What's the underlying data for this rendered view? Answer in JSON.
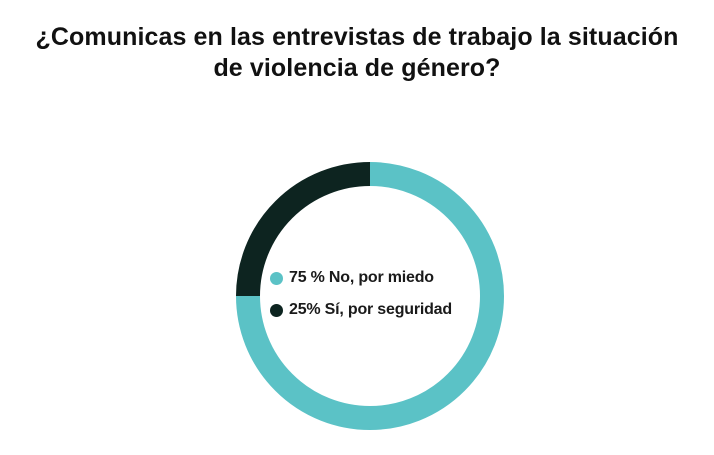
{
  "title": {
    "line1": "¿Comunicas en las entrevistas de trabajo la situación",
    "line2": "de violencia de género?"
  },
  "chart_data": {
    "type": "pie",
    "variant": "donut",
    "title": "¿Comunicas en las entrevistas de trabajo la situación de violencia de género?",
    "slices": [
      {
        "label": "No, por miedo",
        "value": 75,
        "color": "#5bc2c6",
        "legend_text": "75 % No, por miedo"
      },
      {
        "label": "Sí, por seguridad",
        "value": 25,
        "color": "#0d2420",
        "legend_text": "25% Sí, por seguridad"
      }
    ],
    "start_angle": "12 o'clock",
    "direction": "clockwise",
    "legend_placement": "center"
  }
}
